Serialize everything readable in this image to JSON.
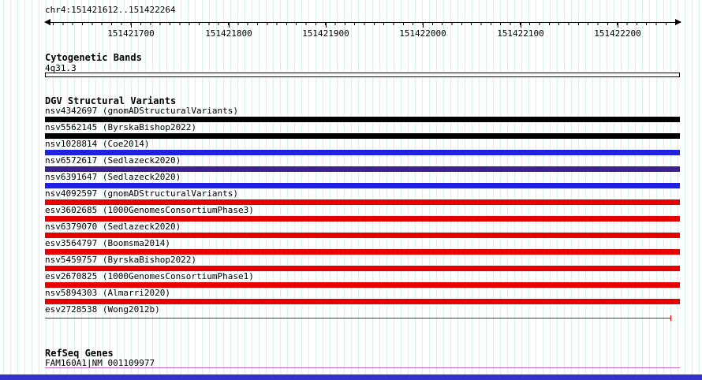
{
  "region": {
    "label": "chr4:151421612..151422264"
  },
  "ruler": {
    "ticks": [
      "151421700",
      "151421800",
      "151421900",
      "151422000",
      "151422100",
      "151422200"
    ]
  },
  "cytogenetic": {
    "title": "Cytogenetic Bands",
    "band_label": "4q31.3"
  },
  "dgv": {
    "title": "DGV Structural Variants",
    "variants": [
      {
        "label": "nsv4342697 (gnomADStructuralVariants)",
        "color": "#000000",
        "style": "bar"
      },
      {
        "label": "nsv5562145 (ByrskaBishop2022)",
        "color": "#000000",
        "style": "bar"
      },
      {
        "label": "nsv1028814 (Coe2014)",
        "color": "#2020e0",
        "style": "bar"
      },
      {
        "label": "nsv6572617 (Sedlazeck2020)",
        "color": "#3d2090",
        "style": "bar"
      },
      {
        "label": "nsv6391647 (Sedlazeck2020)",
        "color": "#2020e0",
        "style": "bar"
      },
      {
        "label": "nsv4092597 (gnomADStructuralVariants)",
        "color": "#e60000",
        "style": "bar"
      },
      {
        "label": "esv3602685 (1000GenomesConsortiumPhase3)",
        "color": "#e60000",
        "style": "bar"
      },
      {
        "label": "nsv6379070 (Sedlazeck2020)",
        "color": "#e60000",
        "style": "bar"
      },
      {
        "label": "esv3564797 (Boomsma2014)",
        "color": "#e60000",
        "style": "bar"
      },
      {
        "label": "nsv5459757 (ByrskaBishop2022)",
        "color": "#e60000",
        "style": "bar"
      },
      {
        "label": "esv2670825 (1000GenomesConsortiumPhase1)",
        "color": "#e60000",
        "style": "bar"
      },
      {
        "label": "nsv5894303 (Almarri2020)",
        "color": "#e60000",
        "style": "bar"
      },
      {
        "label": "esv2728538 (Wong2012b)",
        "color": "#e60000",
        "style": "line"
      }
    ]
  },
  "refseq": {
    "title": "RefSeq Genes",
    "gene_label": "FAM160A1|NM_001109977",
    "line_color": "#cc66cc"
  },
  "colors": {
    "grid_line": "#d7f0f2",
    "footer_bar": "#3333cc"
  }
}
